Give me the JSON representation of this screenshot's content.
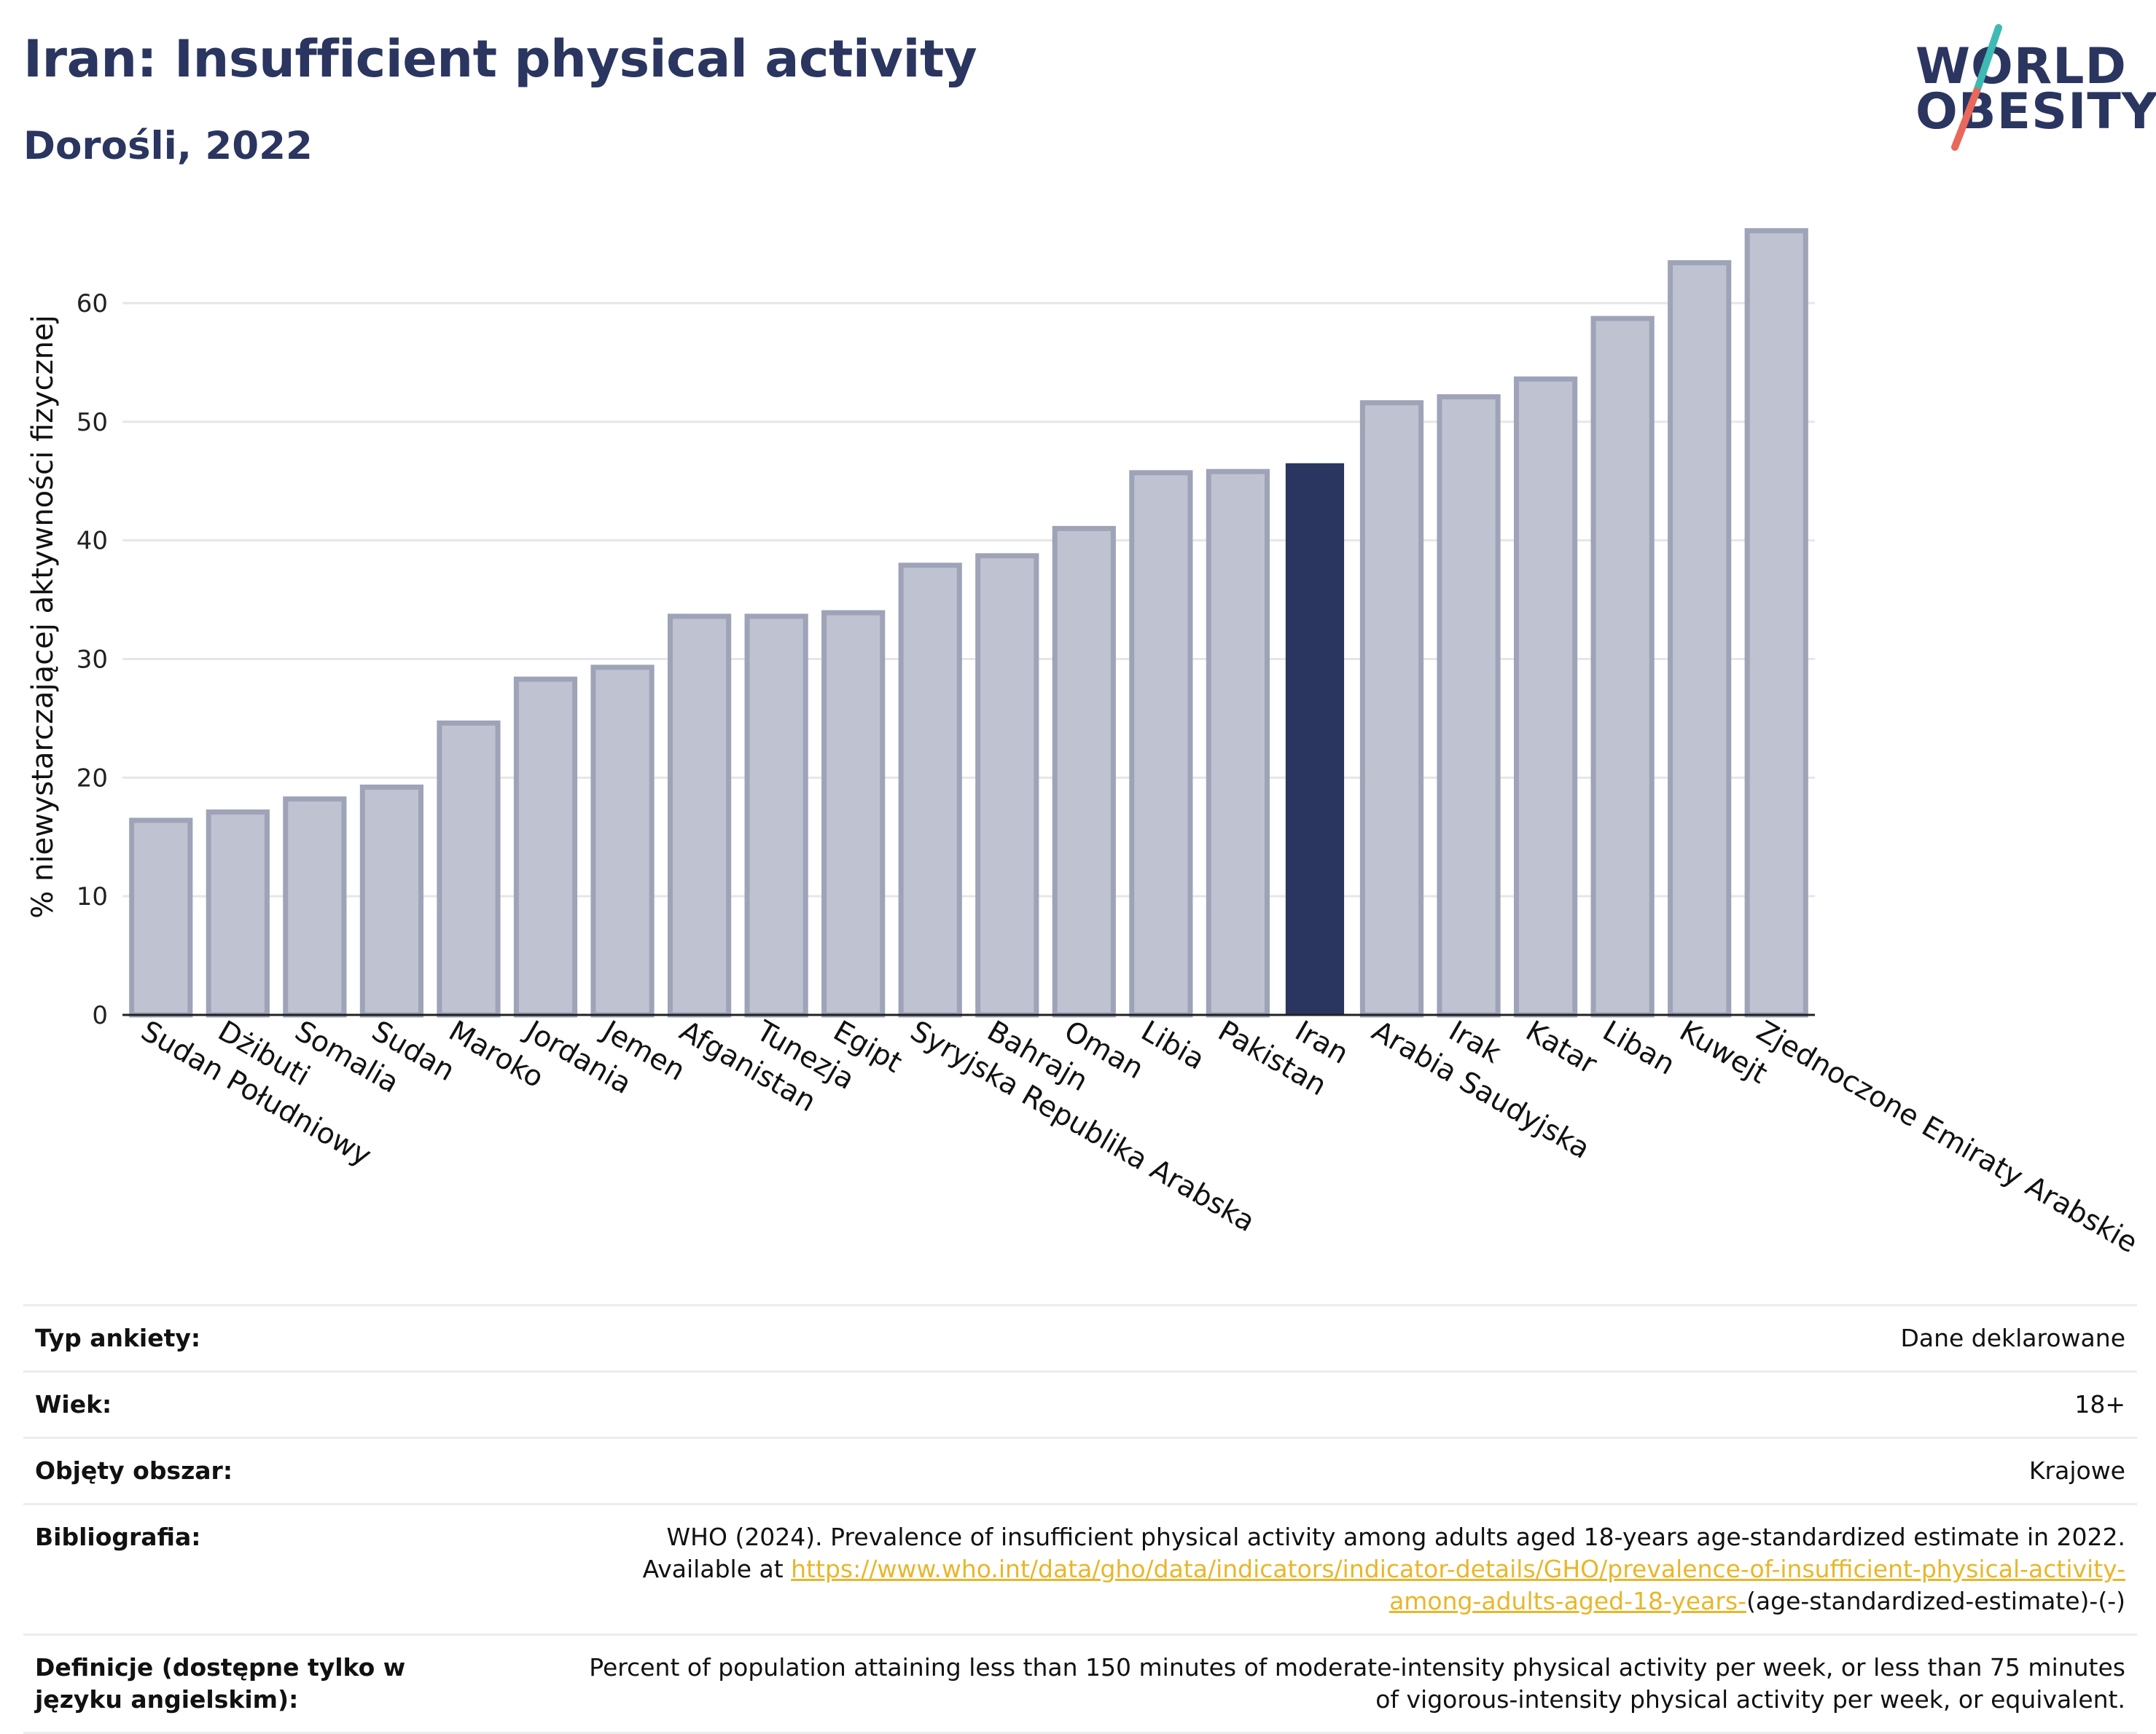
{
  "header": {
    "title": "Iran: Insufficient physical activity",
    "subtitle": "Dorośli, 2022"
  },
  "logo": {
    "line1": "WORLD",
    "line2": "OBESITY",
    "colors": {
      "text": "#2a3560",
      "slash_top": "#3fb9b3",
      "slash_bottom": "#e8685a"
    }
  },
  "chart_data": {
    "type": "bar",
    "ylabel": "% niewystarczającej aktywności fizycznej",
    "xlabel": "",
    "ylim": [
      0,
      67
    ],
    "yticks": [
      0,
      10,
      20,
      30,
      40,
      50,
      60
    ],
    "grid": true,
    "categories": [
      "Sudan Południowy",
      "Dżibuti",
      "Somalia",
      "Sudan",
      "Maroko",
      "Jordania",
      "Jemen",
      "Afganistan",
      "Tunezja",
      "Egipt",
      "Syryjska Republika Arabska",
      "Bahrajn",
      "Oman",
      "Libia",
      "Pakistan",
      "Iran",
      "Arabia Saudyjska",
      "Irak",
      "Katar",
      "Liban",
      "Kuwejt",
      "Zjednoczone Emiraty Arabskie"
    ],
    "values": [
      16.4,
      17.1,
      18.2,
      19.2,
      24.6,
      28.3,
      29.3,
      33.6,
      33.6,
      33.9,
      37.9,
      38.7,
      41.0,
      45.7,
      45.8,
      46.5,
      51.6,
      52.1,
      53.6,
      58.7,
      63.4,
      66.1
    ],
    "highlight": "Iran",
    "colors": {
      "highlight": "#2a3560",
      "default": "#bfc2d0",
      "default_border": "#9ea3b8"
    }
  },
  "meta": [
    {
      "key": "Typ ankiety:",
      "value": "Dane deklarowane"
    },
    {
      "key": "Wiek:",
      "value": "18+"
    },
    {
      "key": "Objęty obszar:",
      "value": "Krajowe"
    },
    {
      "key": "Bibliografia:",
      "value_pre": "WHO (2024). Prevalence of insufficient physical activity among adults aged 18-years age-standardized estimate in 2022. Available at",
      "link": "https://www.who.int/data/gho/data/indicators/indicator-details/GHO/prevalence-of-insufficient-physical-activity-among-adults-aged-18-years-",
      "value_post": "(age-standardized-estimate)-(-)"
    },
    {
      "key": "Definicje (dostępne tylko w języku angielskim):",
      "value": "Percent of population attaining less than 150 minutes of moderate-intensity physical activity per week, or less than 75 minutes of vigorous-intensity physical activity per week, or equivalent."
    }
  ]
}
